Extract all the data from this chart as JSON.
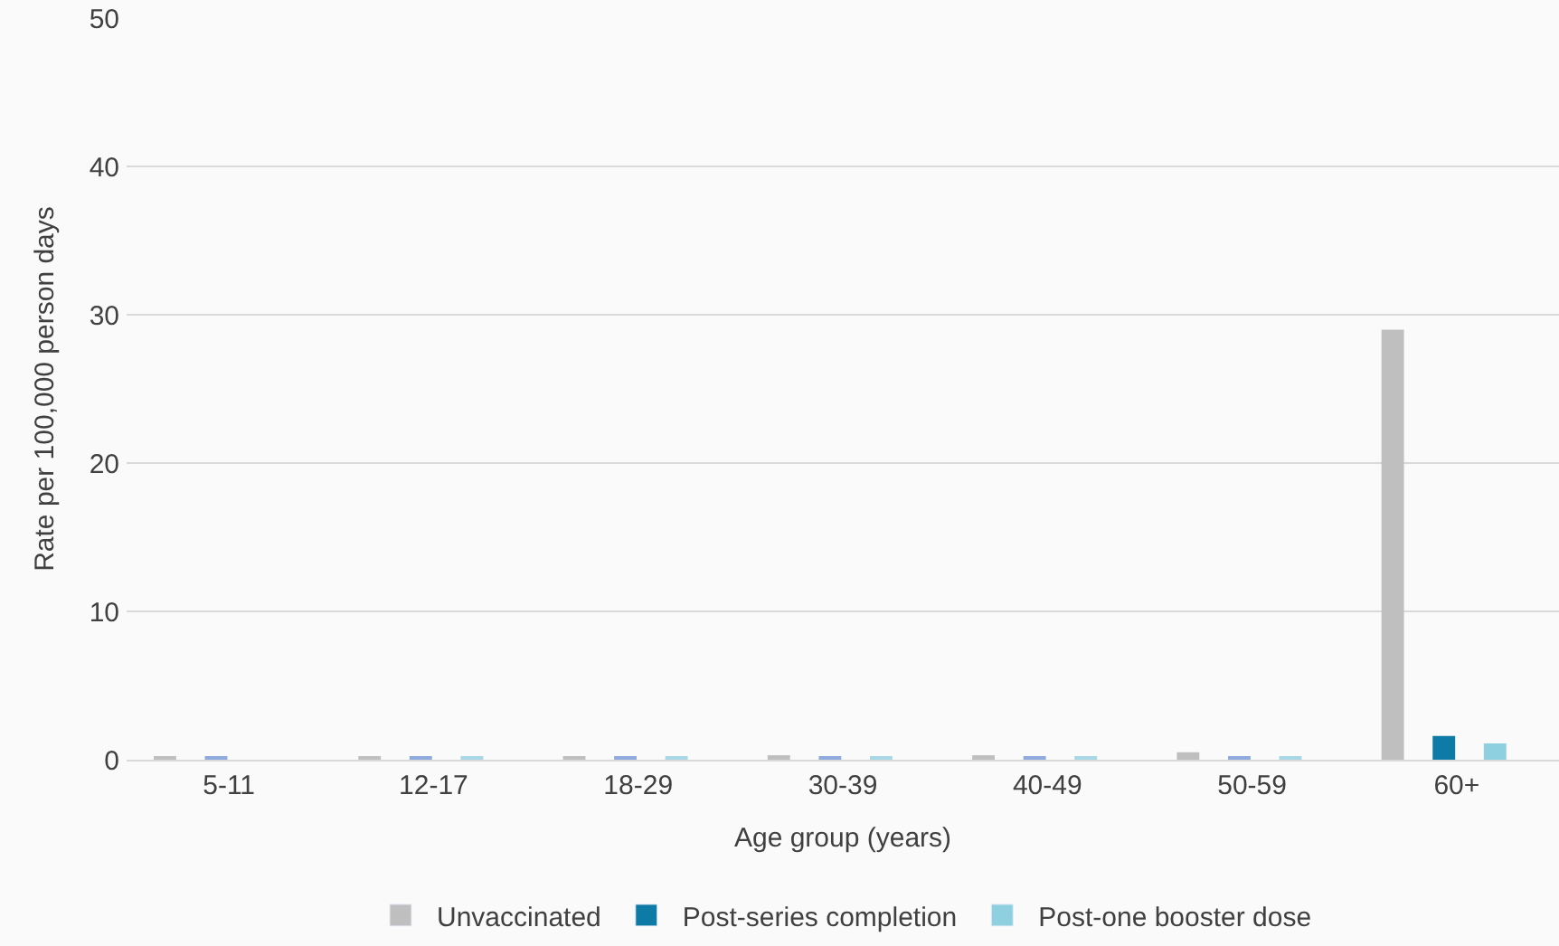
{
  "chart_data": {
    "type": "bar",
    "categories": [
      "5-11",
      "12-17",
      "18-29",
      "30-39",
      "40-49",
      "50-59",
      "60+"
    ],
    "xlabel": "Age group (years)",
    "ylabel": "Rate per 100,000 person days",
    "series": [
      {
        "name": "Unvaccinated",
        "color": "#bfbfbf",
        "values": [
          0.2,
          0.2,
          0.2,
          0.3,
          0.3,
          0.5,
          29
        ]
      },
      {
        "name": "Post-series completion",
        "color": "#0e7aa6",
        "colors": [
          "#8faadc",
          "#8faadc",
          "#8faadc",
          "#8faadc",
          "#8faadc",
          "#8faadc",
          "#0e7aa6"
        ],
        "values": [
          0.2,
          0.2,
          0.2,
          0.2,
          0.2,
          0.2,
          1.6
        ]
      },
      {
        "name": "Post-one booster dose",
        "color": "#8ed0e0",
        "colors": [
          "#a8d8e6",
          "#a8d8e6",
          "#a8d8e6",
          "#a8d8e6",
          "#a8d8e6",
          "#a8d8e6",
          "#8ed0e0"
        ],
        "values": [
          null,
          0.2,
          0.2,
          0.2,
          0.2,
          0.2,
          1.1
        ]
      }
    ],
    "ylim": [
      0,
      50
    ],
    "yticks": [
      0,
      10,
      20,
      30,
      40,
      50
    ],
    "grid": "y",
    "legend": "bottom"
  }
}
